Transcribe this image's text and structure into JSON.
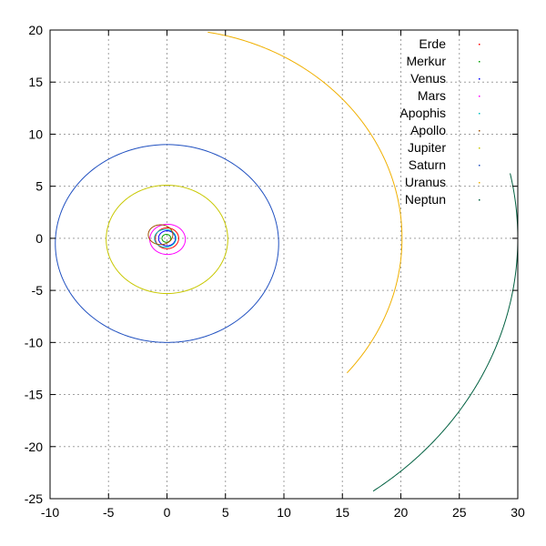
{
  "chart_data": {
    "type": "scatter",
    "title": "",
    "xlabel": "",
    "ylabel": "",
    "xlim": [
      -10,
      30
    ],
    "ylim": [
      -25,
      20
    ],
    "xticks": [
      "-10",
      "-5",
      "0",
      "5",
      "10",
      "15",
      "20",
      "25",
      "30"
    ],
    "yticks": [
      "-25",
      "-20",
      "-15",
      "-10",
      "-5",
      "0",
      "5",
      "10",
      "15",
      "20"
    ],
    "grid": true,
    "legend_position": "top-right",
    "series": [
      {
        "name": "Erde",
        "color": "#ff0000",
        "orbit": {
          "cx": 0.0,
          "cy": 0.0,
          "rx": 1.0,
          "ry": 1.0,
          "a0": 0,
          "a1": 360
        }
      },
      {
        "name": "Merkur",
        "color": "#00a000",
        "orbit": {
          "cx": -0.05,
          "cy": 0.0,
          "rx": 0.38,
          "ry": 0.38,
          "a0": 0,
          "a1": 360
        }
      },
      {
        "name": "Venus",
        "color": "#0000ff",
        "orbit": {
          "cx": 0.0,
          "cy": 0.0,
          "rx": 0.72,
          "ry": 0.72,
          "a0": 0,
          "a1": 360
        }
      },
      {
        "name": "Mars",
        "color": "#ff00ff",
        "orbit": {
          "cx": 0.05,
          "cy": -0.1,
          "rx": 1.52,
          "ry": 1.45,
          "a0": 0,
          "a1": 360
        }
      },
      {
        "name": "Apophis",
        "color": "#00c0c0",
        "orbit": {
          "cx": -0.15,
          "cy": 0.0,
          "rx": 0.92,
          "ry": 0.85,
          "a0": 0,
          "a1": 360
        }
      },
      {
        "name": "Apollo",
        "color": "#a05000",
        "orbit": {
          "cx": -0.55,
          "cy": 0.35,
          "rx": 1.05,
          "ry": 0.95,
          "a0": 0,
          "a1": 360
        }
      },
      {
        "name": "Jupiter",
        "color": "#c8c800",
        "orbit": {
          "cx": 0.0,
          "cy": -0.1,
          "rx": 5.2,
          "ry": 5.2,
          "a0": 0,
          "a1": 360
        }
      },
      {
        "name": "Saturn",
        "color": "#2050c0",
        "orbit": {
          "cx": 0.0,
          "cy": -0.5,
          "rx": 9.55,
          "ry": 9.5,
          "a0": 0,
          "a1": 360
        }
      },
      {
        "name": "Uranus",
        "color": "#f0b000",
        "orbit": {
          "cx": 0.0,
          "cy": 0.0,
          "rx": 20.1,
          "ry": 20.1,
          "a0": -40,
          "a1": 80
        }
      },
      {
        "name": "Neptun",
        "color": "#006040",
        "orbit": {
          "cx": 0.0,
          "cy": 0.0,
          "rx": 30.0,
          "ry": 30.0,
          "a0": -54,
          "a1": 12
        }
      }
    ]
  }
}
